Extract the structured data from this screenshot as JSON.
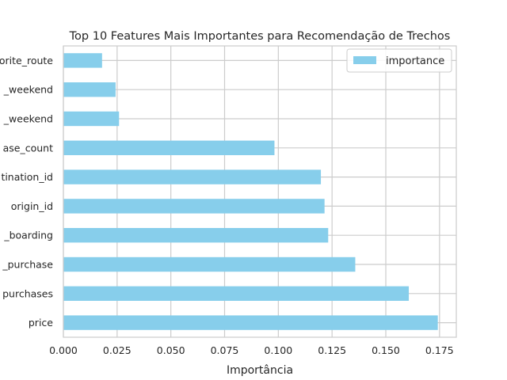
{
  "chart_data": {
    "type": "bar",
    "orientation": "horizontal",
    "title": "Top 10 Features Mais Importantes para Recomendação de Trechos",
    "xlabel": "Importância",
    "ylabel": "",
    "xlim": [
      0,
      0.1828
    ],
    "xticks": [
      0.0,
      0.025,
      0.05,
      0.075,
      0.1,
      0.125,
      0.15,
      0.175
    ],
    "xtick_labels": [
      "0.000",
      "0.025",
      "0.050",
      "0.075",
      "0.100",
      "0.125",
      "0.150",
      "0.175"
    ],
    "categories": [
      "price",
      "purchases",
      "_purchase",
      "_boarding",
      "origin_id",
      "tination_id",
      "ase_count",
      "_weekend",
      "_weekend",
      "orite_route"
    ],
    "series": [
      {
        "name": "importance",
        "color": "#87ceeb",
        "values": [
          0.1742,
          0.1607,
          0.1358,
          0.1232,
          0.1215,
          0.1198,
          0.0982,
          0.0259,
          0.0243,
          0.018
        ]
      }
    ],
    "grid": true,
    "legend": "top-right"
  }
}
